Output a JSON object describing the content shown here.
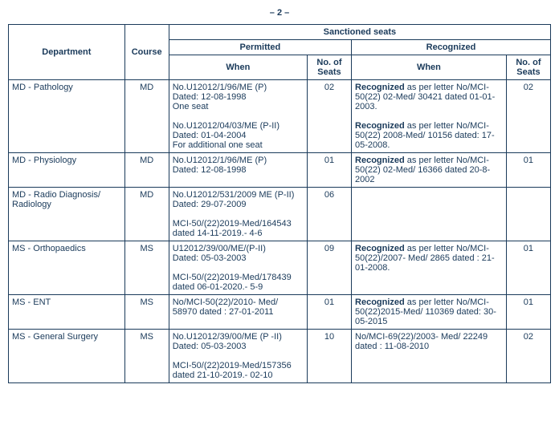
{
  "page_label": "– 2 –",
  "headers": {
    "department": "Department",
    "course": "Course",
    "sanctioned": "Sanctioned seats",
    "permitted": "Permitted",
    "recognized": "Recognized",
    "when": "When",
    "no_of_seats": "No. of Seats"
  },
  "rows": [
    {
      "department": "MD - Pathology",
      "course": "MD",
      "p_when": "No.U12012/1/96/ME (P)\nDated: 12-08-1998\nOne seat\n\nNo.U12012/04/03/ME (P-II) Dated: 01-04-2004\nFor additional one seat",
      "p_seats": "02",
      "r_when_html": "<b>Recognized</b> as per letter No/MCI-50(22) 02-Med/ 30421 dated 01-01-2003.<br><br><b>Recognized</b> as per letter No/MCI-50(22) 2008-Med/ 10156 dated: 17-05-2008.",
      "r_seats": "02"
    },
    {
      "department": "MD - Physiology",
      "course": "MD",
      "p_when": "No.U12012/1/96/ME (P)\nDated: 12-08-1998",
      "p_seats": "01",
      "r_when_html": "<b>Recognized</b> as per letter No/MCI-50(22) 02-Med/ 16366 dated 20-8-2002",
      "r_seats": "01"
    },
    {
      "department": "MD - Radio Diagnosis/ Radiology",
      "course": "MD",
      "p_when": "No.U12012/531/2009 ME (P-II)   Dated: 29-07-2009\n\nMCI-50/(22)2019-Med/164543 dated 14-11-2019.-        4-6",
      "p_seats": "06",
      "r_when_html": "",
      "r_seats": ""
    },
    {
      "department": "MS - Orthopaedics",
      "course": "MS",
      "p_when": "U12012/39/00/ME/(P-II)\nDated: 05-03-2003\n\n MCI-50/(22)2019-Med/178439  dated 06-01-2020.-    5-9",
      "p_seats": "09",
      "r_when_html": "<b>Recognized</b> as per letter No/MCI-50(22)/2007- Med/ 2865 dated : 21-01-2008.",
      "r_seats": "01"
    },
    {
      "department": "MS - ENT",
      "course": "MS",
      "p_when": "No/MCI-50(22)/2010- Med/ 58970  dated : 27-01-2011",
      "p_seats": "01",
      "r_when_html": "<b>Recognized</b> as per letter No/MCI-50(22)2015-Med/ 110369 dated: 30-05-2015",
      "r_seats": "01"
    },
    {
      "department": "MS - General Surgery",
      "course": "MS",
      "p_when": "No.U12012/39/00/ME (P -II) Dated: 05-03-2003\n\nMCI-50/(22)2019-Med/157356 dated  21-10-2019.-        02-10",
      "p_seats": "10",
      "r_when_html": "No/MCI-69(22)/2003- Med/ 22249  dated : 11-08-2010",
      "r_seats": "02"
    }
  ]
}
